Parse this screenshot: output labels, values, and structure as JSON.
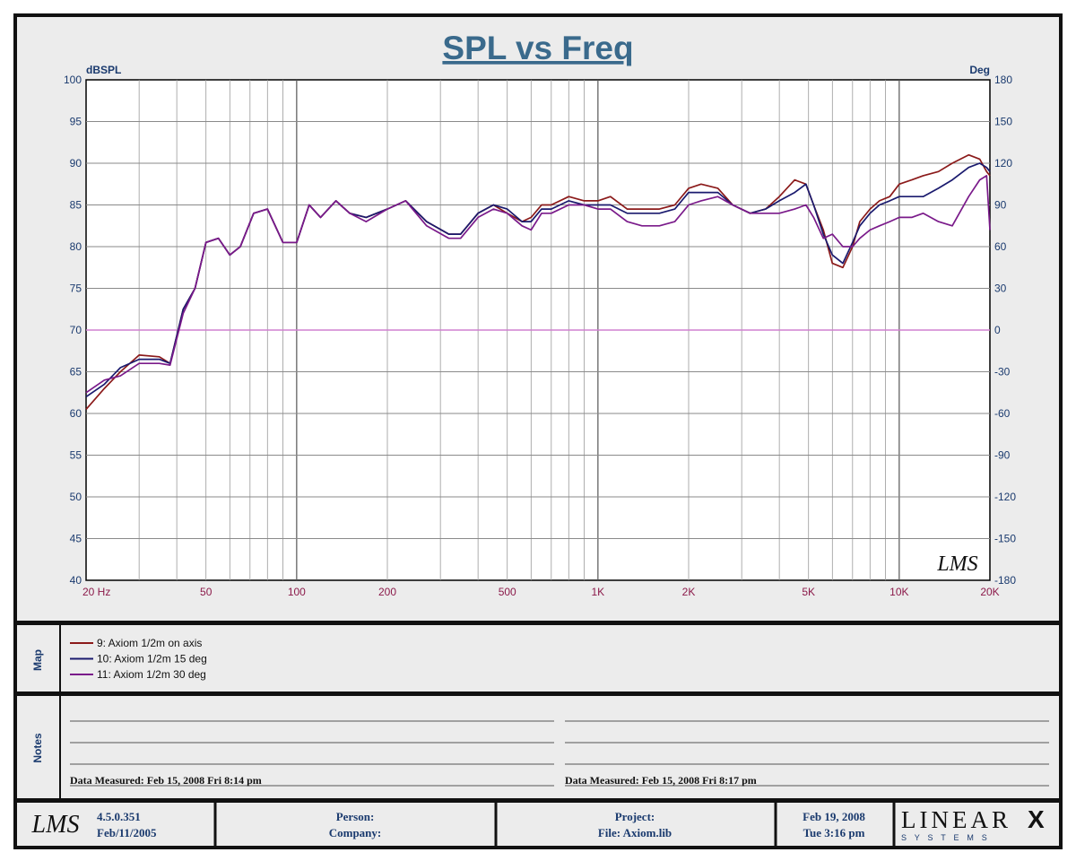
{
  "chart_data": {
    "type": "line",
    "title": "SPL vs Freq",
    "ylabel": "dBSPL",
    "y2label": "Deg",
    "x_scale": "log",
    "xlim": [
      20,
      20000
    ],
    "ylim": [
      40,
      100
    ],
    "y2lim": [
      -180,
      180
    ],
    "grid": true,
    "x_tick_labels": [
      {
        "f": 20,
        "label": "20  Hz"
      },
      {
        "f": 50,
        "label": "50"
      },
      {
        "f": 100,
        "label": "100"
      },
      {
        "f": 200,
        "label": "200"
      },
      {
        "f": 500,
        "label": "500"
      },
      {
        "f": 1000,
        "label": "1K"
      },
      {
        "f": 2000,
        "label": "2K"
      },
      {
        "f": 5000,
        "label": "5K"
      },
      {
        "f": 10000,
        "label": "10K"
      },
      {
        "f": 20000,
        "label": "20K"
      }
    ],
    "y_ticks": [
      100,
      95,
      90,
      85,
      80,
      75,
      70,
      65,
      60,
      55,
      50,
      45,
      40
    ],
    "y2_ticks": [
      180,
      150,
      120,
      90,
      60,
      30,
      0,
      -30,
      -60,
      -90,
      -120,
      -150,
      -180
    ],
    "reference_line": {
      "y": 70,
      "color": "#d080d0"
    },
    "series": [
      {
        "name": "9: Axiom 1/2m on axis",
        "color": "#8b1a1a",
        "x": [
          20,
          23,
          26,
          30,
          35,
          38,
          42,
          46,
          50,
          55,
          60,
          65,
          72,
          80,
          90,
          100,
          110,
          120,
          135,
          150,
          170,
          200,
          230,
          270,
          320,
          350,
          400,
          450,
          500,
          560,
          600,
          650,
          700,
          800,
          900,
          1000,
          1100,
          1250,
          1400,
          1600,
          1800,
          2000,
          2200,
          2500,
          2800,
          3200,
          3600,
          4000,
          4500,
          4900,
          5200,
          5600,
          6000,
          6500,
          7000,
          7400,
          8000,
          8600,
          9300,
          10000,
          11000,
          12000,
          13500,
          15000,
          17000,
          18500,
          19500,
          20000
        ],
        "y": [
          60.5,
          63,
          65,
          67,
          66.8,
          66,
          72.5,
          75,
          80.5,
          81,
          79,
          80,
          84,
          84.5,
          80.5,
          80.5,
          85,
          83.5,
          85.5,
          84,
          83.5,
          84.5,
          85.5,
          83,
          81.5,
          81.5,
          84,
          85,
          84,
          83,
          83.5,
          85,
          85,
          86,
          85.5,
          85.5,
          86,
          84.5,
          84.5,
          84.5,
          85,
          87,
          87.5,
          87,
          85,
          84,
          84.5,
          86,
          88,
          87.5,
          85,
          82,
          78,
          77.5,
          80,
          83,
          84.5,
          85.5,
          86,
          87.5,
          88,
          88.5,
          89,
          90,
          91,
          90.5,
          89,
          88.5
        ]
      },
      {
        "name": "10: Axiom 1/2m 15 deg",
        "color": "#1a1a6e",
        "x": [
          20,
          23,
          26,
          30,
          35,
          38,
          42,
          46,
          50,
          55,
          60,
          65,
          72,
          80,
          90,
          100,
          110,
          120,
          135,
          150,
          170,
          200,
          230,
          270,
          320,
          350,
          400,
          450,
          500,
          560,
          600,
          650,
          700,
          800,
          900,
          1000,
          1100,
          1250,
          1400,
          1600,
          1800,
          2000,
          2200,
          2500,
          2800,
          3200,
          3600,
          4000,
          4500,
          4900,
          5200,
          5600,
          6000,
          6500,
          7000,
          7400,
          8000,
          8600,
          9300,
          10000,
          11000,
          12000,
          13500,
          15000,
          17000,
          18500,
          19500,
          20000
        ],
        "y": [
          62,
          63.5,
          65.5,
          66.5,
          66.5,
          66,
          72.5,
          75,
          80.5,
          81,
          79,
          80,
          84,
          84.5,
          80.5,
          80.5,
          85,
          83.5,
          85.5,
          84,
          83.5,
          84.5,
          85.5,
          83,
          81.5,
          81.5,
          84,
          85,
          84.5,
          83,
          83,
          84.5,
          84.5,
          85.5,
          85,
          85,
          85,
          84,
          84,
          84,
          84.5,
          86.5,
          86.5,
          86.5,
          85,
          84,
          84.5,
          85.5,
          86.5,
          87.5,
          85,
          81.5,
          79,
          78,
          80.5,
          82.5,
          84,
          85,
          85.5,
          86,
          86,
          86,
          87,
          88,
          89.5,
          90,
          89.5,
          89
        ]
      },
      {
        "name": "11: Axiom 1/2m 30 deg",
        "color": "#7a1a8a",
        "x": [
          20,
          23,
          26,
          30,
          35,
          38,
          42,
          46,
          50,
          55,
          60,
          65,
          72,
          80,
          90,
          100,
          110,
          120,
          135,
          150,
          170,
          200,
          230,
          270,
          320,
          350,
          400,
          450,
          500,
          560,
          600,
          650,
          700,
          800,
          900,
          1000,
          1100,
          1250,
          1400,
          1600,
          1800,
          2000,
          2200,
          2500,
          2800,
          3200,
          3600,
          4000,
          4500,
          4900,
          5200,
          5600,
          6000,
          6500,
          7000,
          7400,
          8000,
          8600,
          9300,
          10000,
          11000,
          12000,
          13500,
          15000,
          17000,
          18500,
          19500,
          20000
        ],
        "y": [
          62.5,
          64,
          64.5,
          66,
          66,
          65.8,
          72,
          75,
          80.5,
          81,
          79,
          80,
          84,
          84.5,
          80.5,
          80.5,
          85,
          83.5,
          85.5,
          84,
          83,
          84.5,
          85.5,
          82.5,
          81,
          81,
          83.5,
          84.5,
          84,
          82.5,
          82,
          84,
          84,
          85,
          85,
          84.5,
          84.5,
          83,
          82.5,
          82.5,
          83,
          85,
          85.5,
          86,
          85,
          84,
          84,
          84,
          84.5,
          85,
          83.5,
          81,
          81.5,
          80,
          80,
          81,
          82,
          82.5,
          83,
          83.5,
          83.5,
          84,
          83,
          82.5,
          86,
          88,
          88.5,
          82
        ]
      }
    ]
  },
  "panels": {
    "map_label": "Map",
    "notes_label": "Notes",
    "notes_left": "Data Measured: Feb 15, 2008  Fri  8:14 pm",
    "notes_right": "Data Measured: Feb 15, 2008  Fri  8:17 pm"
  },
  "footer": {
    "logo": "LMS",
    "version": "4.5.0.351",
    "version_date": "Feb/11/2005",
    "person_label": "Person:",
    "company_label": "Company:",
    "project_label": "Project:",
    "file_label": "File: Axiom.lib",
    "date": "Feb 19, 2008",
    "time": "Tue  3:16 pm",
    "brand": "LINEAR",
    "brand_x": "X",
    "brand_sub": "S Y S T E M S"
  },
  "watermark": "LMS",
  "colors": {
    "frame": "#111111",
    "panel": "#ececec",
    "text_blue": "#1a3a6e",
    "title_blue": "#3a6a8c",
    "xtick_color": "#8b1a4a"
  }
}
